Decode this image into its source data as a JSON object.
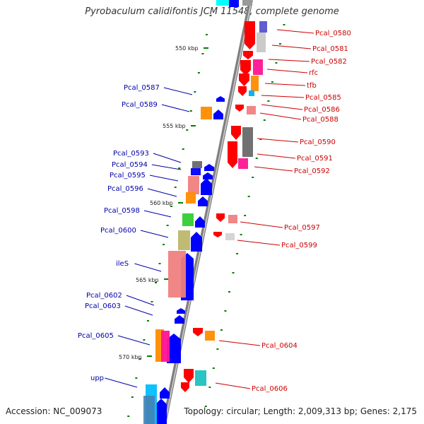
{
  "title": "Pyrobaculum calidifontis JCM 11548, complete genome",
  "footer": {
    "accession": "Accession: NC_009073",
    "topology": "Topology: circular; Length: 2,009,313 bp; Genes: 2,175"
  },
  "colors": {
    "plus_strand_label": "#cc0000",
    "minus_strand_label": "#0000aa",
    "plus_gene": "#ff0000",
    "minus_gene": "#0000ff",
    "tick": "#008000",
    "backbone": "#808080"
  },
  "kbp_ticks": [
    "550 kbp",
    "555 kbp",
    "560 kbp",
    "565 kbp",
    "570 kbp"
  ],
  "plus_genes": [
    "Pcal_0580",
    "Pcal_0581",
    "Pcal_0582",
    "rfc",
    "tfb",
    "Pcal_0585",
    "Pcal_0586",
    "Pcal_0588",
    "Pcal_0590",
    "Pcal_0591",
    "Pcal_0592",
    "Pcal_0597",
    "Pcal_0599",
    "Pcal_0604",
    "Pcal_0606"
  ],
  "minus_genes": [
    "Pcal_0587",
    "Pcal_0589",
    "Pcal_0593",
    "Pcal_0594",
    "Pcal_0595",
    "Pcal_0596",
    "Pcal_0598",
    "Pcal_0600",
    "ileS",
    "Pcal_0602",
    "Pcal_0603",
    "Pcal_0605",
    "upp"
  ]
}
